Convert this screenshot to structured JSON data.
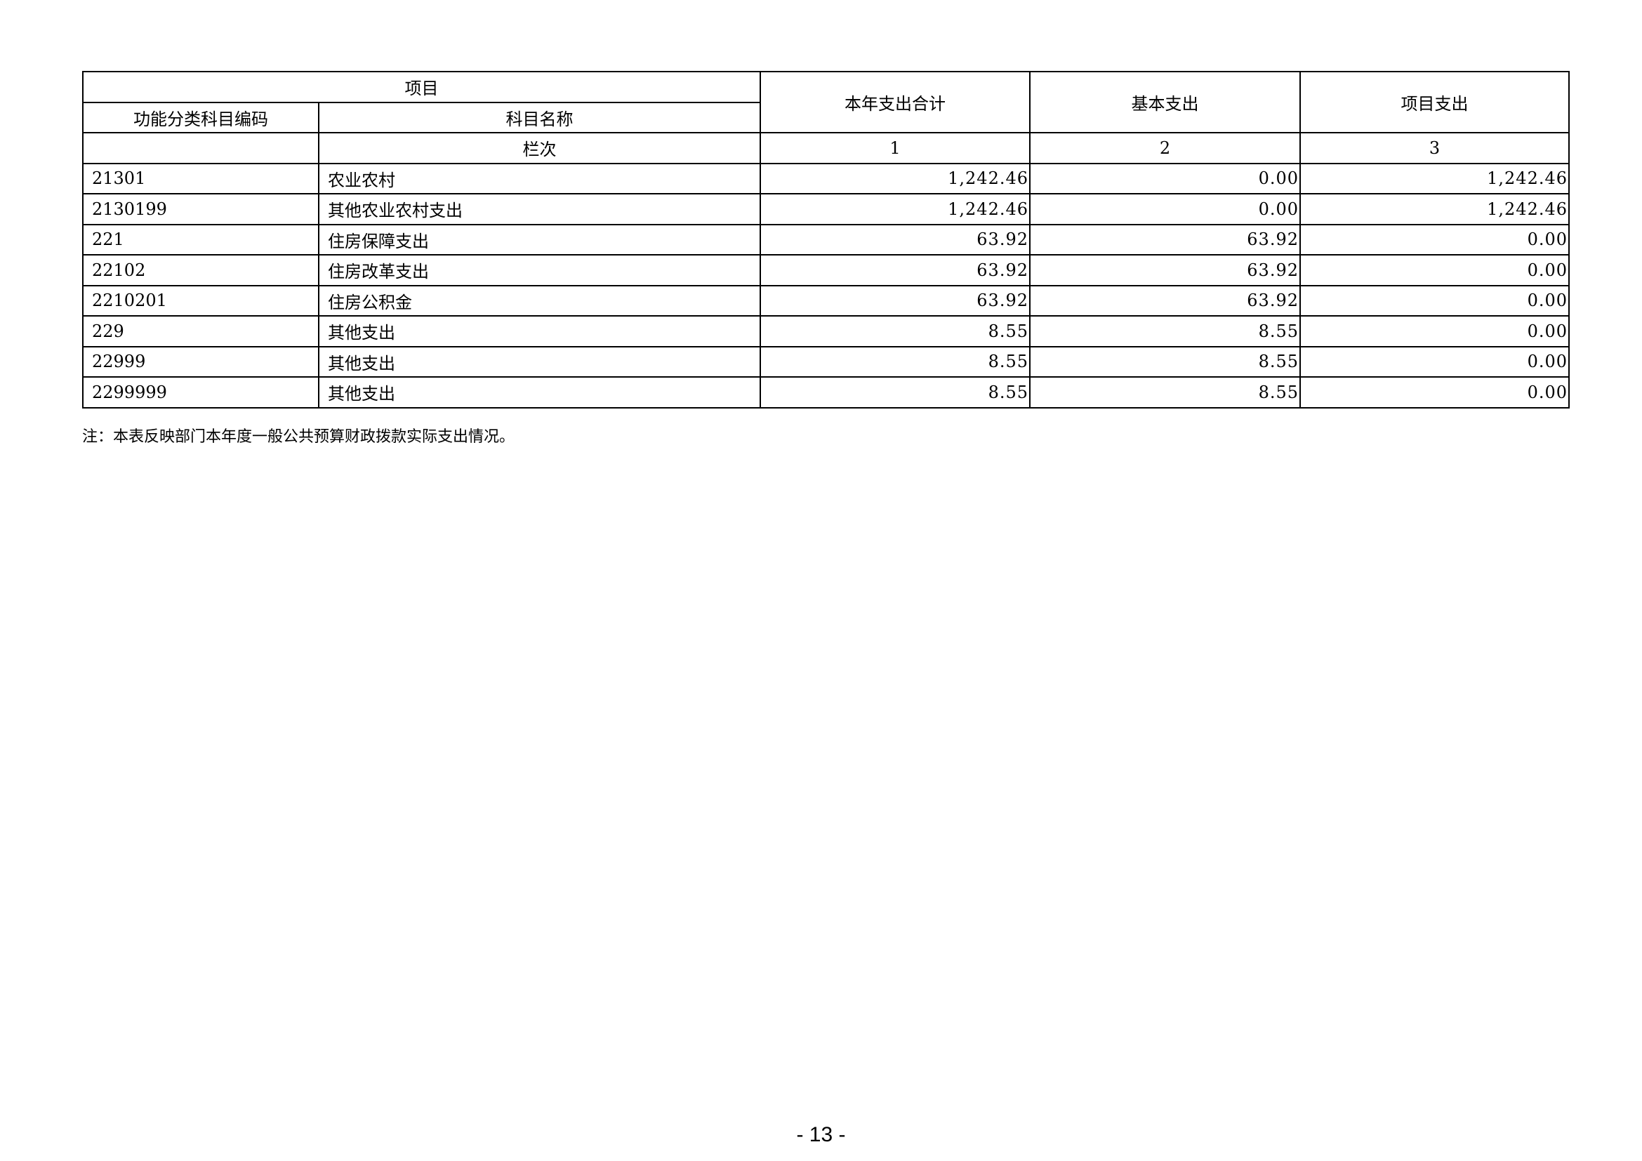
{
  "table": {
    "header": {
      "item": "项目",
      "code": "功能分类科目编码",
      "name": "科目名称",
      "col_label": "栏次",
      "total": "本年支出合计",
      "basic": "基本支出",
      "project": "项目支出",
      "col1": "1",
      "col2": "2",
      "col3": "3"
    },
    "rows": [
      {
        "code": "21301",
        "name": "农业农村",
        "total": "1,242.46",
        "basic": "0.00",
        "project": "1,242.46"
      },
      {
        "code": "2130199",
        "name": "其他农业农村支出",
        "total": "1,242.46",
        "basic": "0.00",
        "project": "1,242.46"
      },
      {
        "code": "221",
        "name": "住房保障支出",
        "total": "63.92",
        "basic": "63.92",
        "project": "0.00"
      },
      {
        "code": "22102",
        "name": "住房改革支出",
        "total": "63.92",
        "basic": "63.92",
        "project": "0.00"
      },
      {
        "code": "2210201",
        "name": "住房公积金",
        "total": "63.92",
        "basic": "63.92",
        "project": "0.00"
      },
      {
        "code": "229",
        "name": "其他支出",
        "total": "8.55",
        "basic": "8.55",
        "project": "0.00"
      },
      {
        "code": "22999",
        "name": "其他支出",
        "total": "8.55",
        "basic": "8.55",
        "project": "0.00"
      },
      {
        "code": "2299999",
        "name": "其他支出",
        "total": "8.55",
        "basic": "8.55",
        "project": "0.00"
      }
    ]
  },
  "note": "注：本表反映部门本年度一般公共预算财政拨款实际支出情况。",
  "page_number": "- 13 -"
}
